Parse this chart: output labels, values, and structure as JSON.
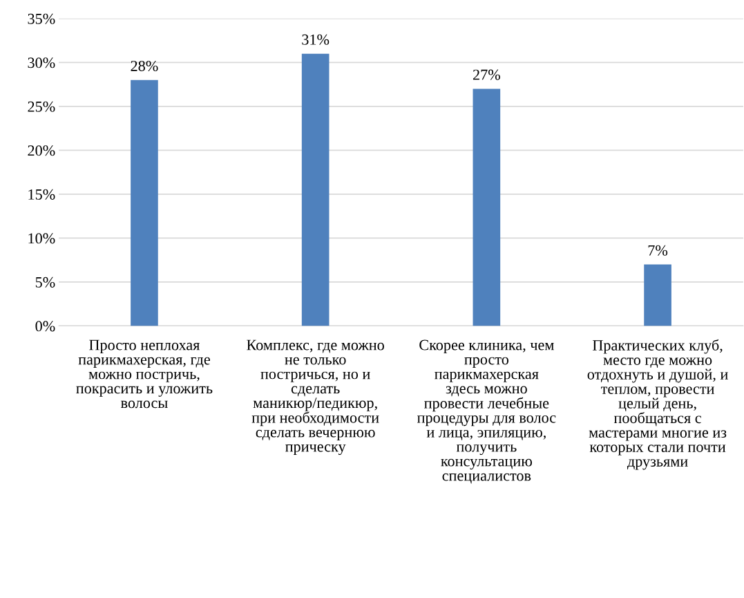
{
  "chart_data": {
    "type": "bar",
    "categories": [
      "Просто неплохая\nпарикмахерская, где\nможно постричь,\nпокрасить и уложить\nволосы",
      "Комплекс, где можно\nне только\nпостричься, но и\nсделать\nманикюр/педикюр,\nпри необходимости\nсделать вечернюю\nприческу",
      "Скорее клиника, чем\nпросто\nпарикмахерская\nздесь можно\nпровести лечебные\nпроцедуры для волос\nи лица, эпиляцию,\nполучить\nконсультацию\nспециалистов",
      "Практических клуб,\nместо где можно\nотдохнуть и душой, и\nтеплом, провести\nцелый день,\nпообщаться с\nмастерами многие из\nкоторых стали почти\nдрузьями"
    ],
    "series": [
      {
        "color": "#4f81bd",
        "values": [
          28,
          31,
          27,
          7
        ],
        "value_labels": [
          "28%",
          "31%",
          "27%",
          "7%"
        ]
      }
    ],
    "ylim": [
      0,
      35
    ],
    "yticks": [
      {
        "value": 0,
        "label": "0%"
      },
      {
        "value": 5,
        "label": "5%"
      },
      {
        "value": 10,
        "label": "10%"
      },
      {
        "value": 15,
        "label": "15%"
      },
      {
        "value": 20,
        "label": "20%"
      },
      {
        "value": 25,
        "label": "25%"
      },
      {
        "value": 30,
        "label": "30%"
      },
      {
        "value": 35,
        "label": "35%"
      }
    ],
    "grid": "y"
  }
}
